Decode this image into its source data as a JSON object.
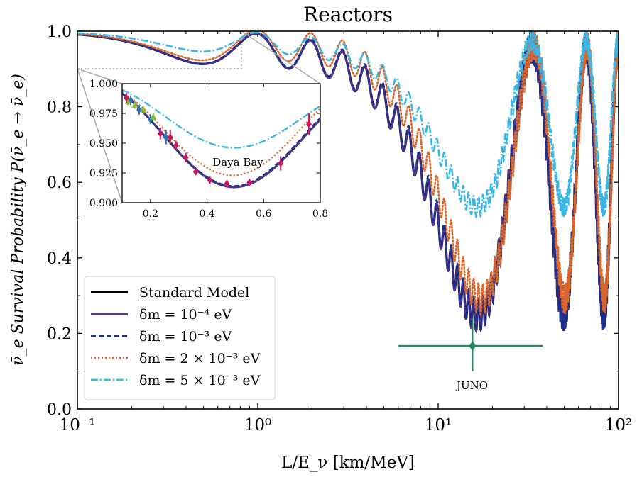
{
  "chart_data": {
    "type": "line",
    "title": "Reactors",
    "xlabel": "L/E_ν [km/MeV]",
    "ylabel": "ν̄_e Survival Probability P(ν̄_e → ν̄_e)",
    "xscale": "log",
    "xlim": [
      0.1,
      100
    ],
    "ylim": [
      0.0,
      1.0
    ],
    "x_ticks": [
      {
        "value": 0.1,
        "label": "10⁻¹"
      },
      {
        "value": 1,
        "label": "10⁰"
      },
      {
        "value": 10,
        "label": "10¹"
      },
      {
        "value": 100,
        "label": "10²"
      }
    ],
    "y_ticks": [
      "0.0",
      "0.2",
      "0.4",
      "0.6",
      "0.8",
      "1.0"
    ],
    "legend": {
      "position": "lower-left",
      "entries": [
        {
          "label": "Standard Model",
          "color": "#000000",
          "style": "solid"
        },
        {
          "label": "δm = 10⁻⁴ eV",
          "color": "#56348f",
          "style": "solid"
        },
        {
          "label": "δm = 10⁻³ eV",
          "color": "#1a2f8c",
          "style": "dashed"
        },
        {
          "label": "δm = 2 × 10⁻³ eV",
          "color": "#d9662b",
          "style": "dotted"
        },
        {
          "label": "δm = 5 × 10⁻³ eV",
          "color": "#38b7e6",
          "style": "dashdot"
        }
      ]
    },
    "series_params": [
      {
        "name": "Standard Model",
        "amp": 1.0,
        "extra": 0.0,
        "extraPhase": 0.0
      },
      {
        "name": "δm = 10⁻⁴ eV",
        "amp": 1.0,
        "extra": 0.0,
        "extraPhase": 0.0
      },
      {
        "name": "δm = 10⁻³ eV",
        "amp": 1.0,
        "extra": 0.01,
        "extraPhase": 0.0
      },
      {
        "name": "δm = 2 × 10⁻³ eV",
        "amp": 0.94,
        "extra": 0.05,
        "extraPhase": 0.0
      },
      {
        "name": "δm = 5 × 10⁻³ eV",
        "amp": 0.62,
        "extra": 0.0,
        "extraPhase": 0.0
      }
    ],
    "oscillation": {
      "s12": 0.846,
      "s13": 0.0853,
      "dm21": 7.5e-05,
      "dm31": 0.00252
    },
    "juno": {
      "label": "JUNO",
      "x": 15.5,
      "y": 0.167,
      "x_low": 6.0,
      "x_high": 38.0,
      "y_low": 0.1,
      "y_high": 0.24,
      "color": "#1e8a5e"
    },
    "inset": {
      "label": "Daya Bay",
      "xlim": [
        0.1,
        0.8
      ],
      "ylim": [
        0.9,
        1.0
      ],
      "x_ticks": [
        "0.2",
        "0.4",
        "0.6",
        "0.8"
      ],
      "y_ticks": [
        "0.900",
        "0.925",
        "0.950",
        "0.975",
        "1.000"
      ],
      "points_magenta": [
        {
          "x": 0.115,
          "y": 0.988,
          "err": 0.004
        },
        {
          "x": 0.235,
          "y": 0.958,
          "err": 0.005
        },
        {
          "x": 0.27,
          "y": 0.955,
          "err": 0.006
        },
        {
          "x": 0.29,
          "y": 0.948,
          "err": 0.004
        },
        {
          "x": 0.325,
          "y": 0.938,
          "err": 0.004
        },
        {
          "x": 0.36,
          "y": 0.926,
          "err": 0.003
        },
        {
          "x": 0.41,
          "y": 0.919,
          "err": 0.003
        },
        {
          "x": 0.47,
          "y": 0.916,
          "err": 0.003
        },
        {
          "x": 0.55,
          "y": 0.917,
          "err": 0.003
        },
        {
          "x": 0.66,
          "y": 0.933,
          "err": 0.006
        },
        {
          "x": 0.76,
          "y": 0.966,
          "err": 0.009
        }
      ],
      "points_blue": [
        {
          "x": 0.13,
          "y": 0.986,
          "err": 0.004
        },
        {
          "x": 0.16,
          "y": 0.978,
          "err": 0.004
        },
        {
          "x": 0.2,
          "y": 0.97,
          "err": 0.004
        },
        {
          "x": 0.255,
          "y": 0.955,
          "err": 0.006
        }
      ],
      "points_green": [
        {
          "x": 0.12,
          "y": 0.985,
          "err": 0.003
        },
        {
          "x": 0.145,
          "y": 0.982,
          "err": 0.003
        },
        {
          "x": 0.175,
          "y": 0.978,
          "err": 0.003
        },
        {
          "x": 0.21,
          "y": 0.972,
          "err": 0.003
        },
        {
          "x": 0.27,
          "y": 0.955,
          "err": 0.003
        }
      ]
    }
  }
}
